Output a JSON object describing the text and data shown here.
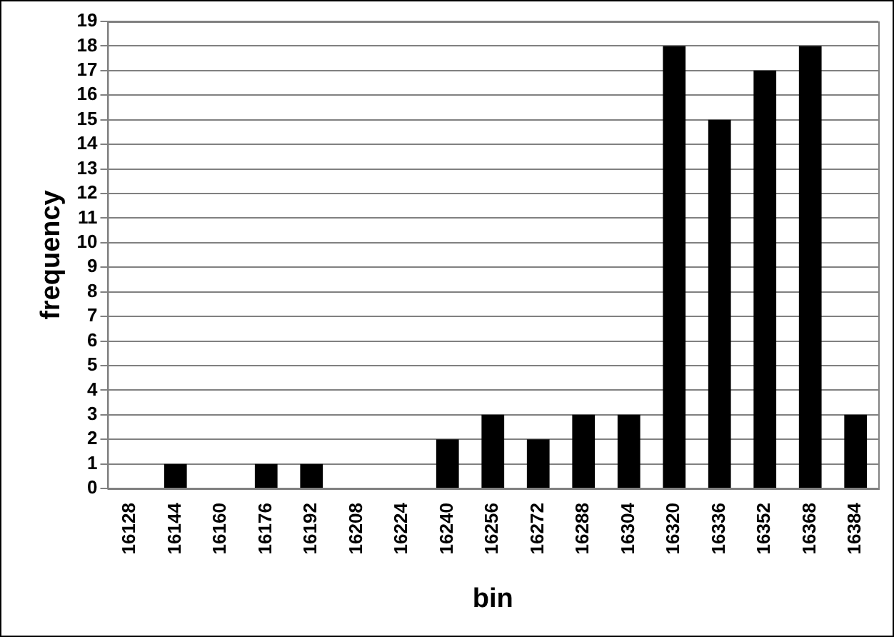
{
  "chart_data": {
    "type": "bar",
    "xlabel": "bin",
    "ylabel": "frequency",
    "categories": [
      "16128",
      "16144",
      "16160",
      "16176",
      "16192",
      "16208",
      "16224",
      "16240",
      "16256",
      "16272",
      "16288",
      "16304",
      "16320",
      "16336",
      "16352",
      "16368",
      "16384"
    ],
    "values": [
      0,
      1,
      0,
      1,
      1,
      0,
      0,
      2,
      3,
      2,
      3,
      3,
      18,
      15,
      17,
      18,
      3
    ],
    "color": "#000000",
    "ylim": [
      0,
      19
    ],
    "yticks": [
      0,
      1,
      2,
      3,
      4,
      5,
      6,
      7,
      8,
      9,
      10,
      11,
      12,
      13,
      14,
      15,
      16,
      17,
      18,
      19
    ],
    "grid": "y",
    "legend": false
  }
}
